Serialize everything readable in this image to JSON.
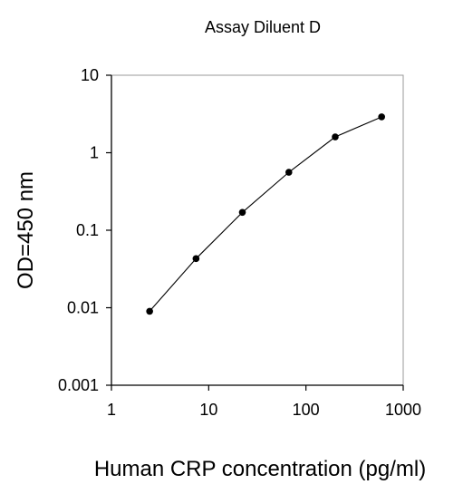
{
  "chart_data": {
    "type": "line",
    "title": "Assay Diluent D",
    "xlabel": "Human CRP concentration (pg/ml)",
    "ylabel": "OD=450 nm",
    "xscale": "log",
    "yscale": "log",
    "xlim": [
      1,
      1000
    ],
    "ylim": [
      0.001,
      10
    ],
    "x_ticks": [
      1,
      10,
      100,
      1000
    ],
    "x_tick_labels": [
      "1",
      "10",
      "100",
      "1000"
    ],
    "y_ticks": [
      0.001,
      0.01,
      0.1,
      1,
      10
    ],
    "y_tick_labels": [
      "0.001",
      "0.01",
      "0.1",
      "1",
      "10"
    ],
    "grid": false,
    "legend": "none",
    "line_color": "#000000",
    "marker_color": "#000000",
    "series": [
      {
        "x": [
          2.47,
          7.41,
          22.2,
          66.7,
          200,
          600
        ],
        "y": [
          0.009,
          0.043,
          0.17,
          0.56,
          1.6,
          2.9
        ]
      }
    ]
  }
}
